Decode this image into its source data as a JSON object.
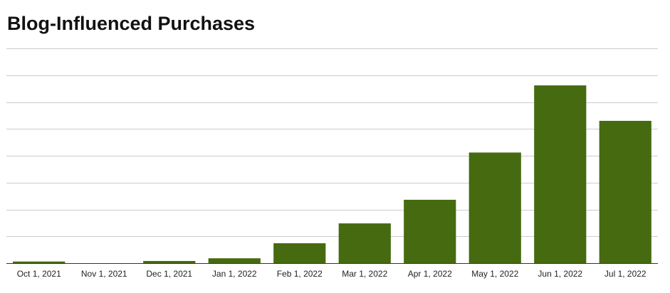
{
  "colors": {
    "bar": "#456a10",
    "grid": "#cccccc",
    "axis": "#333333",
    "title": "#111111",
    "tick_text": "#222222",
    "background": "#ffffff"
  },
  "chart_data": {
    "type": "bar",
    "title": "Blog-Influenced Purchases",
    "xlabel": "",
    "ylabel": "",
    "categories": [
      "Oct 1, 2021",
      "Nov 1, 2021",
      "Dec 1, 2021",
      "Jan 1, 2022",
      "Feb 1, 2022",
      "Mar 1, 2022",
      "Apr 1, 2022",
      "May 1, 2022",
      "Jun 1, 2022",
      "Jul 1, 2022"
    ],
    "values": [
      0.3,
      0,
      0.4,
      0.9,
      3.7,
      7.4,
      11.8,
      20.6,
      33.1,
      26.5
    ],
    "ylim": [
      0,
      40
    ],
    "gridlines": 8,
    "y_tick_labels_visible": false,
    "grid": true,
    "legend": "none"
  }
}
